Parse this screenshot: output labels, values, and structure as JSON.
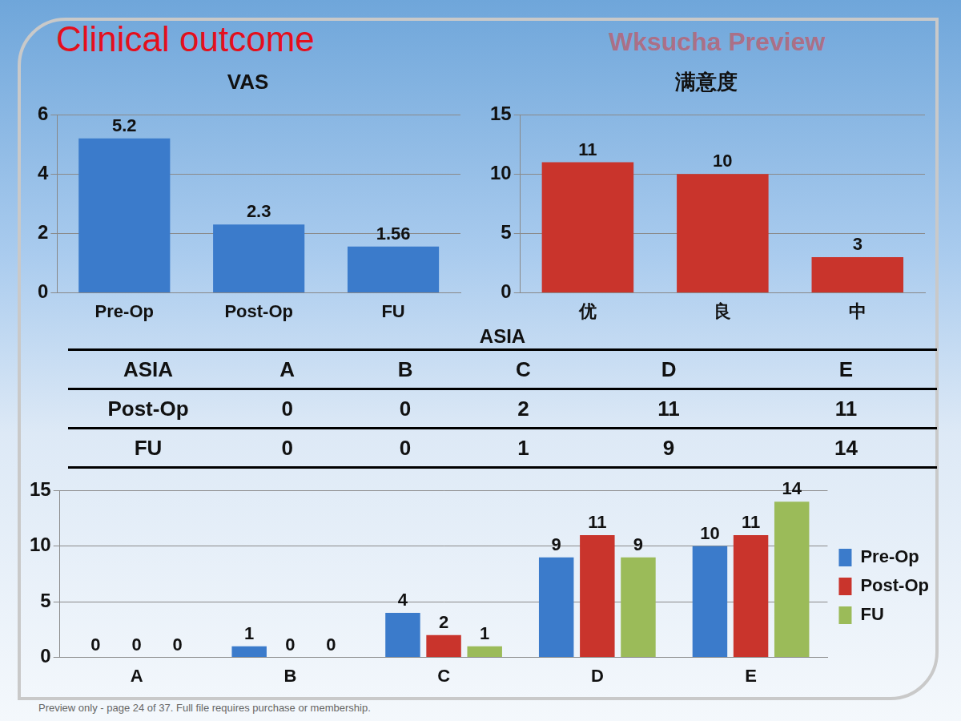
{
  "title": "Clinical outcome",
  "watermark": "Wksucha Preview",
  "footer": "Preview only - page 24 of 37. Full file requires purchase or membership.",
  "chart_data": [
    {
      "type": "bar",
      "title": "VAS",
      "categories": [
        "Pre-Op",
        "Post-Op",
        "FU"
      ],
      "values": [
        5.2,
        2.3,
        1.56
      ],
      "color": "#3b7bcb",
      "ylim": [
        0,
        6
      ],
      "yticks": [
        0,
        2,
        4,
        6
      ],
      "grid": true,
      "data_labels": true
    },
    {
      "type": "bar",
      "title": "满意度",
      "categories": [
        "优",
        "良",
        "中"
      ],
      "values": [
        11,
        10,
        3
      ],
      "color": "#c9342c",
      "ylim": [
        0,
        15
      ],
      "yticks": [
        0,
        5,
        10,
        15
      ],
      "grid": true,
      "data_labels": true
    },
    {
      "type": "bar",
      "categories": [
        "A",
        "B",
        "C",
        "D",
        "E"
      ],
      "series": [
        {
          "name": "Pre-Op",
          "color": "#3b7bcb",
          "values": [
            0,
            1,
            4,
            9,
            10
          ]
        },
        {
          "name": "Post-Op",
          "color": "#c9342c",
          "values": [
            0,
            0,
            2,
            11,
            11
          ]
        },
        {
          "name": "FU",
          "color": "#9bbb59",
          "values": [
            0,
            0,
            1,
            9,
            14
          ]
        }
      ],
      "ylim": [
        0,
        15
      ],
      "yticks": [
        0,
        5,
        10,
        15
      ],
      "grid": true,
      "data_labels": true,
      "legend": "right"
    }
  ],
  "table": {
    "title": "ASIA",
    "header": [
      "ASIA",
      "A",
      "B",
      "C",
      "D",
      "E"
    ],
    "rows": [
      [
        "Post-Op",
        0,
        0,
        2,
        11,
        11
      ],
      [
        "FU",
        0,
        0,
        1,
        9,
        14
      ]
    ]
  }
}
